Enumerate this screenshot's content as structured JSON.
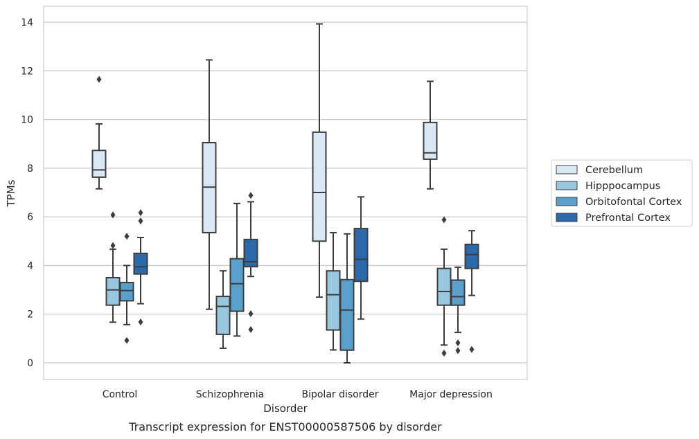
{
  "chart_data": {
    "type": "box",
    "xlabel": "Disorder",
    "ylabel": "TPMs",
    "caption": "Transcript expression for ENST00000587506 by disorder",
    "ylim": [
      -0.65,
      14.65
    ],
    "yticks": [
      0,
      2,
      4,
      6,
      8,
      10,
      12,
      14
    ],
    "grid": true,
    "legend_placement": "right-center",
    "categories": [
      "Control",
      "Schizophrenia",
      "Bipolar disorder",
      "Major depression"
    ],
    "series": [
      {
        "name": "Cerebellum",
        "color": "#dae8f5",
        "boxes": [
          {
            "whisker_low": 7.15,
            "q1": 7.63,
            "median": 7.93,
            "q3": 8.73,
            "whisker_high": 9.82,
            "outliers": [
              11.65
            ]
          },
          {
            "whisker_low": 2.2,
            "q1": 5.35,
            "median": 7.22,
            "q3": 9.05,
            "whisker_high": 12.45,
            "outliers": []
          },
          {
            "whisker_low": 2.7,
            "q1": 5.0,
            "median": 7.0,
            "q3": 9.48,
            "whisker_high": 13.93,
            "outliers": []
          },
          {
            "whisker_low": 7.15,
            "q1": 8.37,
            "median": 8.63,
            "q3": 9.88,
            "whisker_high": 11.57,
            "outliers": []
          }
        ]
      },
      {
        "name": "Hipppocampus",
        "color": "#9ac7e0",
        "boxes": [
          {
            "whisker_low": 1.67,
            "q1": 2.37,
            "median": 3.0,
            "q3": 3.5,
            "whisker_high": 4.67,
            "outliers": [
              4.82,
              6.08
            ]
          },
          {
            "whisker_low": 0.6,
            "q1": 1.17,
            "median": 2.32,
            "q3": 2.73,
            "whisker_high": 3.78,
            "outliers": []
          },
          {
            "whisker_low": 0.53,
            "q1": 1.35,
            "median": 2.8,
            "q3": 3.78,
            "whisker_high": 5.35,
            "outliers": []
          },
          {
            "whisker_low": 0.73,
            "q1": 2.37,
            "median": 2.93,
            "q3": 3.88,
            "whisker_high": 4.67,
            "outliers": [
              0.4,
              5.88
            ]
          }
        ]
      },
      {
        "name": "Orbitofontal Cortex",
        "color": "#5b9fcb",
        "boxes": [
          {
            "whisker_low": 1.57,
            "q1": 2.55,
            "median": 2.97,
            "q3": 3.3,
            "whisker_high": 4.0,
            "outliers": [
              0.92,
              5.2
            ]
          },
          {
            "whisker_low": 1.1,
            "q1": 2.12,
            "median": 3.25,
            "q3": 4.28,
            "whisker_high": 6.55,
            "outliers": []
          },
          {
            "whisker_low": 0.0,
            "q1": 0.52,
            "median": 2.17,
            "q3": 3.42,
            "whisker_high": 5.3,
            "outliers": []
          },
          {
            "whisker_low": 1.25,
            "q1": 2.37,
            "median": 2.72,
            "q3": 3.4,
            "whisker_high": 3.93,
            "outliers": [
              0.82,
              0.5
            ]
          }
        ]
      },
      {
        "name": "Prefrontal Cortex",
        "color": "#2c69aa",
        "boxes": [
          {
            "whisker_low": 2.43,
            "q1": 3.65,
            "median": 3.95,
            "q3": 4.5,
            "whisker_high": 5.15,
            "outliers": [
              1.68,
              5.83,
              6.17
            ]
          },
          {
            "whisker_low": 3.55,
            "q1": 3.95,
            "median": 4.15,
            "q3": 5.07,
            "whisker_high": 6.62,
            "outliers": [
              1.37,
              2.02,
              6.88
            ]
          },
          {
            "whisker_low": 1.8,
            "q1": 3.35,
            "median": 4.25,
            "q3": 5.52,
            "whisker_high": 6.82,
            "outliers": []
          },
          {
            "whisker_low": 2.77,
            "q1": 3.88,
            "median": 4.45,
            "q3": 4.87,
            "whisker_high": 5.43,
            "outliers": [
              0.55
            ]
          }
        ]
      }
    ]
  }
}
